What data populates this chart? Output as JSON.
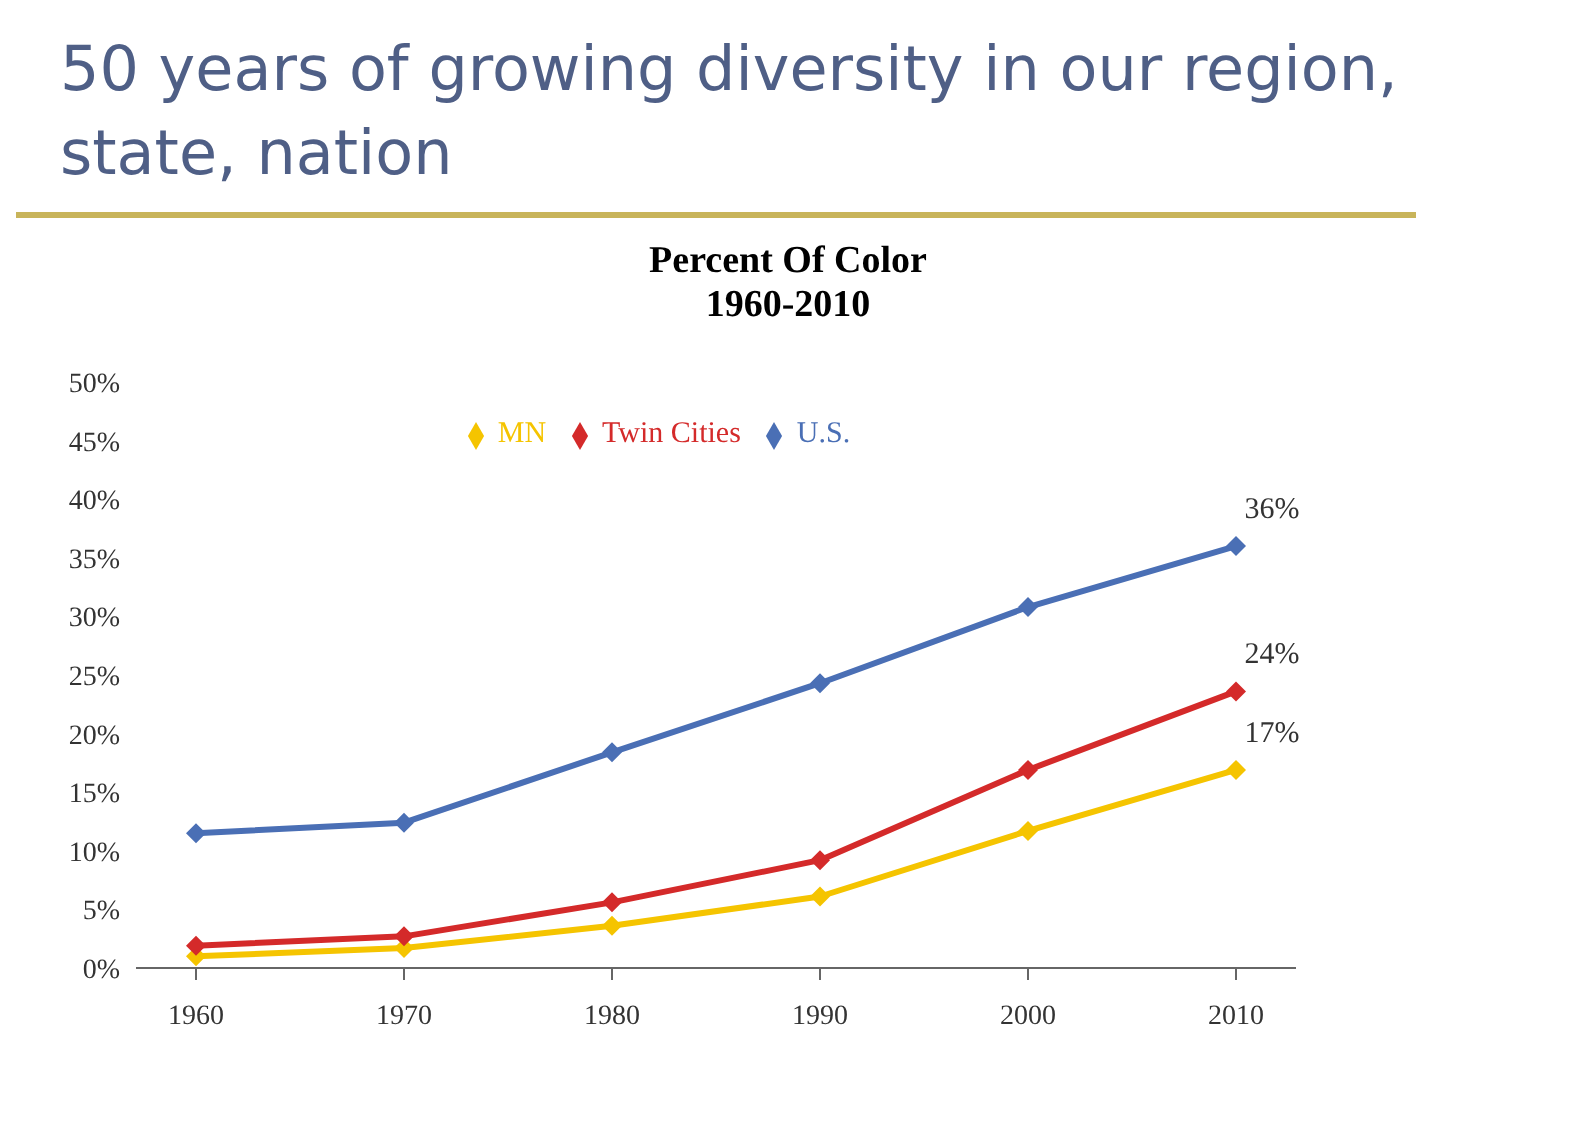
{
  "chart_data": {
    "type": "line",
    "title": "50 years of growing diversity in our region, state, nation",
    "subtitle": "Percent Of Color\n1960-2010",
    "categories": [
      "1960",
      "1970",
      "1980",
      "1990",
      "2000",
      "2010"
    ],
    "series": [
      {
        "name": "U.S.",
        "color": "#4a6fb5",
        "values": [
          11.5,
          12.4,
          18.4,
          24.3,
          30.8,
          36
        ]
      },
      {
        "name": "MN",
        "color": "#f5c400",
        "values": [
          1,
          1.7,
          3.6,
          6.1,
          11.7,
          16.9
        ]
      },
      {
        "name": "Twin Cities",
        "color": "#d42a2a",
        "values": [
          1.9,
          2.7,
          5.6,
          9.2,
          16.9,
          23.6
        ]
      }
    ],
    "ylim": [
      0,
      50
    ],
    "yticks": [
      {
        "value": 0,
        "label": "0%"
      },
      {
        "value": 5,
        "label": "5%"
      },
      {
        "value": 10,
        "label": "10%"
      },
      {
        "value": 15,
        "label": "15%"
      },
      {
        "value": 20,
        "label": "20%"
      },
      {
        "value": 25,
        "label": "25%"
      },
      {
        "value": 30,
        "label": "30%"
      },
      {
        "value": 35,
        "label": "35%"
      },
      {
        "value": 40,
        "label": "40%"
      },
      {
        "value": 45,
        "label": "45%"
      },
      {
        "value": 50,
        "label": "50%"
      }
    ],
    "annotations": [
      {
        "text": "36%",
        "x": "2010",
        "y": 36
      },
      {
        "text": "24%",
        "x": "2010",
        "y": 23.6
      },
      {
        "text": "17%",
        "x": "2010",
        "y": 16.9
      }
    ],
    "legend": "top",
    "marker": "diamond",
    "line_style": "solid",
    "grid": false
  }
}
